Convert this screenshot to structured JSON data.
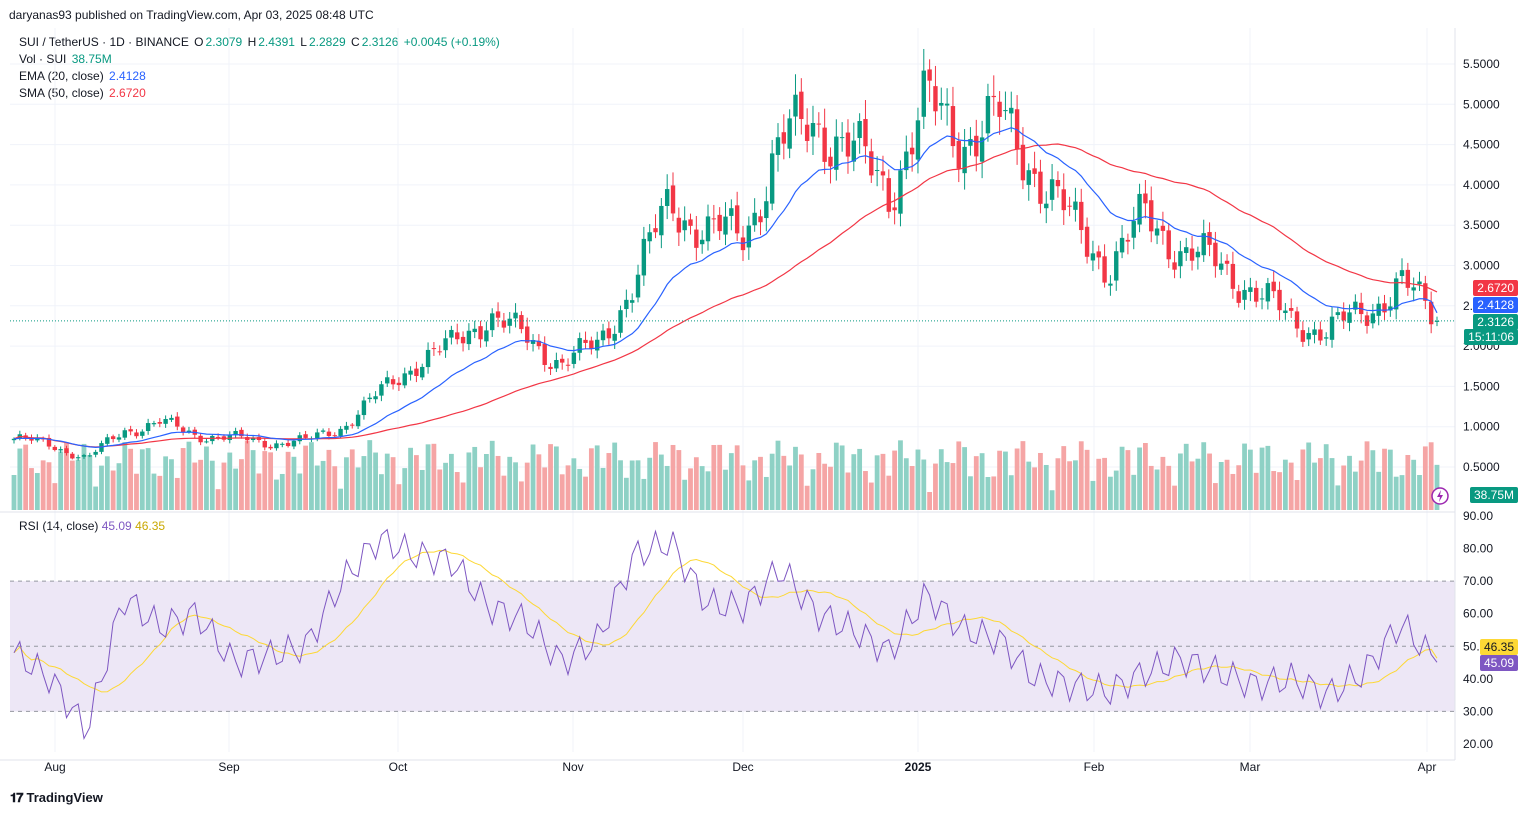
{
  "header": {
    "publisher": "daryanas93 published on TradingView.com, Apr 03, 2025 08:48 UTC"
  },
  "legend": {
    "symbol": "SUI / TetherUS · 1D · BINANCE",
    "o_label": "O",
    "o_value": "2.3079",
    "h_label": "H",
    "h_value": "2.4391",
    "l_label": "L",
    "l_value": "2.2829",
    "c_label": "C",
    "c_value": "2.3126",
    "change": "+0.0045 (+0.19%)",
    "vol_label": "Vol · SUI",
    "vol_value": "38.75M",
    "ema_label": "EMA (20, close)",
    "ema_value": "2.4128",
    "sma_label": "SMA (50, close)",
    "sma_value": "2.6720",
    "rsi_label": "RSI (14, close)",
    "rsi_value": "45.09",
    "rsi_ma_value": "46.35"
  },
  "badges": {
    "sma": "2.6720",
    "ema": "2.4128",
    "close": "2.3126",
    "countdown": "15:11:06",
    "volume": "38.75M",
    "rsi_ma": "46.35",
    "rsi": "45.09"
  },
  "colors": {
    "up": "#089981",
    "down": "#f23645",
    "vol_up": "#8ed1c5",
    "vol_down": "#f5a5a5",
    "ema": "#2962ff",
    "sma": "#f23645",
    "rsi": "#7e57c2",
    "rsi_ma": "#fdd835",
    "rsi_band": "#ede7f6"
  },
  "footer": {
    "brand": "TradingView"
  },
  "chart_data": [
    {
      "type": "candlestick",
      "title": "SUI / TetherUS · 1D · BINANCE",
      "price_axis": [
        "5.5000",
        "5.0000",
        "4.5000",
        "4.0000",
        "3.5000",
        "3.0000",
        "2.5000",
        "2.0000",
        "1.5000",
        "1.0000",
        "0.5000"
      ],
      "ylim": [
        0,
        5.8
      ],
      "time_axis": [
        "Aug",
        "Sep",
        "Oct",
        "Nov",
        "Dec",
        "2025",
        "Feb",
        "Mar",
        "Apr"
      ],
      "close_path_weekly": [
        0.85,
        0.78,
        0.6,
        0.95,
        1.05,
        0.9,
        0.86,
        0.8,
        0.82,
        1.0,
        1.4,
        1.8,
        2.0,
        2.4,
        2.1,
        1.8,
        2.0,
        2.8,
        3.8,
        3.4,
        3.4,
        4.5,
        4.8,
        4.4,
        3.95,
        5.0,
        4.6,
        4.8,
        4.2,
        3.5,
        3.0,
        3.6,
        3.2,
        3.0,
        2.7,
        2.3,
        2.2,
        2.4,
        2.8,
        2.31
      ],
      "last": {
        "open": 2.3079,
        "high": 2.4391,
        "low": 2.2829,
        "close": 2.3126
      },
      "ema20_last": 2.4128,
      "sma50_last": 2.672,
      "volume_last": "38.75M"
    },
    {
      "type": "line",
      "title": "RSI (14, close)",
      "y_axis": [
        "90.00",
        "80.00",
        "70.00",
        "60.00",
        "50.00",
        "40.00",
        "30.00",
        "20.00"
      ],
      "ylim": [
        18,
        92
      ],
      "bands": [
        30,
        50,
        70
      ],
      "rsi_weekly": [
        48,
        40,
        24,
        65,
        56,
        60,
        45,
        47,
        50,
        70,
        83,
        78,
        76,
        62,
        58,
        45,
        52,
        78,
        82,
        63,
        62,
        74,
        60,
        55,
        48,
        66,
        55,
        52,
        40,
        38,
        36,
        42,
        46,
        42,
        38,
        40,
        35,
        42,
        57,
        45
      ],
      "rsi_last": 45.09,
      "rsi_ma_last": 46.35
    }
  ]
}
